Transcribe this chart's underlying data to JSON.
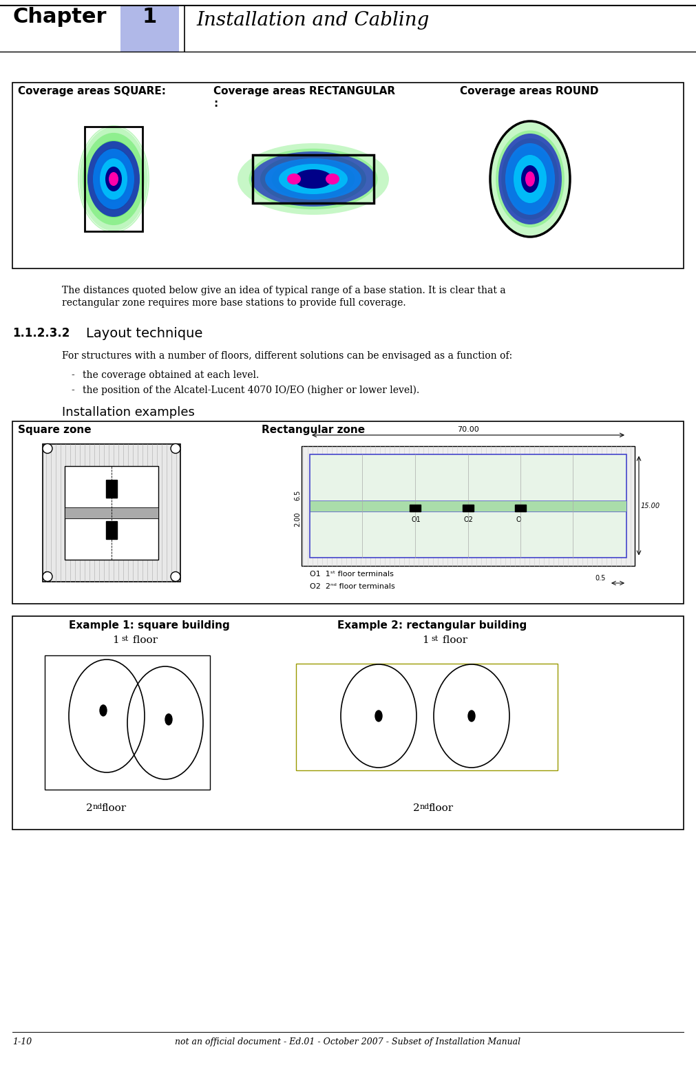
{
  "title_chapter": "Chapter",
  "title_number": "1",
  "title_text": "Installation and Cabling",
  "header_bg": "#c8c8ff",
  "page_bg": "#ffffff",
  "coverage_box_title1": "Coverage areas SQUARE:",
  "coverage_box_title2": "Coverage areas RECTANGULAR",
  "coverage_box_title2b": ":",
  "coverage_box_title3": "Coverage areas ROUND",
  "para1a": "The distances quoted below give an idea of typical range of a base station. It is clear that a",
  "para1b": "rectangular zone requires more base stations to provide full coverage.",
  "section_num": "1.1.2.3.2",
  "section_title": "Layout technique",
  "para2": "For structures with a number of floors, different solutions can be envisaged as a function of:",
  "bullet1": "the coverage obtained at each level.",
  "bullet2": "the position of the Alcatel-Lucent 4070 IO/EO (higher or lower level).",
  "install_title": "Installation examples",
  "zone_box_left": "Square zone",
  "zone_box_right": "Rectangular zone",
  "example_box_left": "Example 1: square building",
  "example_box_right": "Example 2: rectangular building",
  "footer_left": "1-10",
  "footer_right": "not an official document - Ed.01 - October 2007 - Subset of Installation Manual"
}
